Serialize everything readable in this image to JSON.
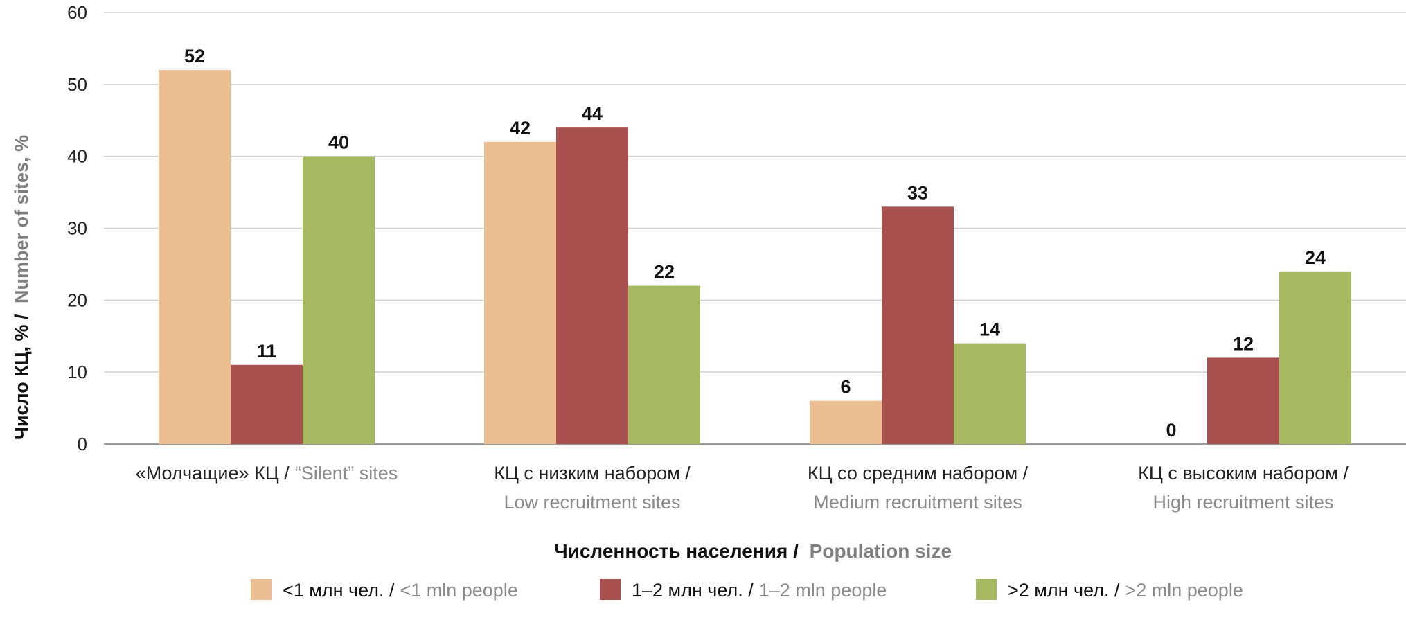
{
  "chart_data": {
    "type": "bar",
    "ylabel": {
      "ru": "Число КЦ, % /",
      "en": "Number of sites, %"
    },
    "xlabel": {
      "ru": "Численность населения /",
      "en": "Population size"
    },
    "ylim": [
      0,
      60
    ],
    "yticks": [
      0,
      10,
      20,
      30,
      40,
      50,
      60
    ],
    "grid": true,
    "legend_position": "bottom",
    "categories": [
      {
        "ru": "«Молчащие» КЦ /",
        "en": "“Silent” sites",
        "layout": "inline"
      },
      {
        "ru": "КЦ с низким набором /",
        "en": "Low recruitment sites",
        "layout": "stacked"
      },
      {
        "ru": "КЦ со средним набором /",
        "en": "Medium recruitment sites",
        "layout": "stacked"
      },
      {
        "ru": "КЦ с высоким набором /",
        "en": "High recruitment sites",
        "layout": "stacked"
      }
    ],
    "series": [
      {
        "ru": "<1 млн чел. /",
        "en": "<1 mln people",
        "color": "#EBBE92",
        "values": [
          52,
          42,
          6,
          0
        ]
      },
      {
        "ru": "1–2 млн чел. /",
        "en": "1–2 mln people",
        "color": "#A8514F",
        "values": [
          11,
          44,
          33,
          12
        ]
      },
      {
        "ru": ">2 млн чел. /",
        "en": ">2 mln people",
        "color": "#A5B961",
        "values": [
          40,
          22,
          14,
          24
        ]
      }
    ]
  }
}
